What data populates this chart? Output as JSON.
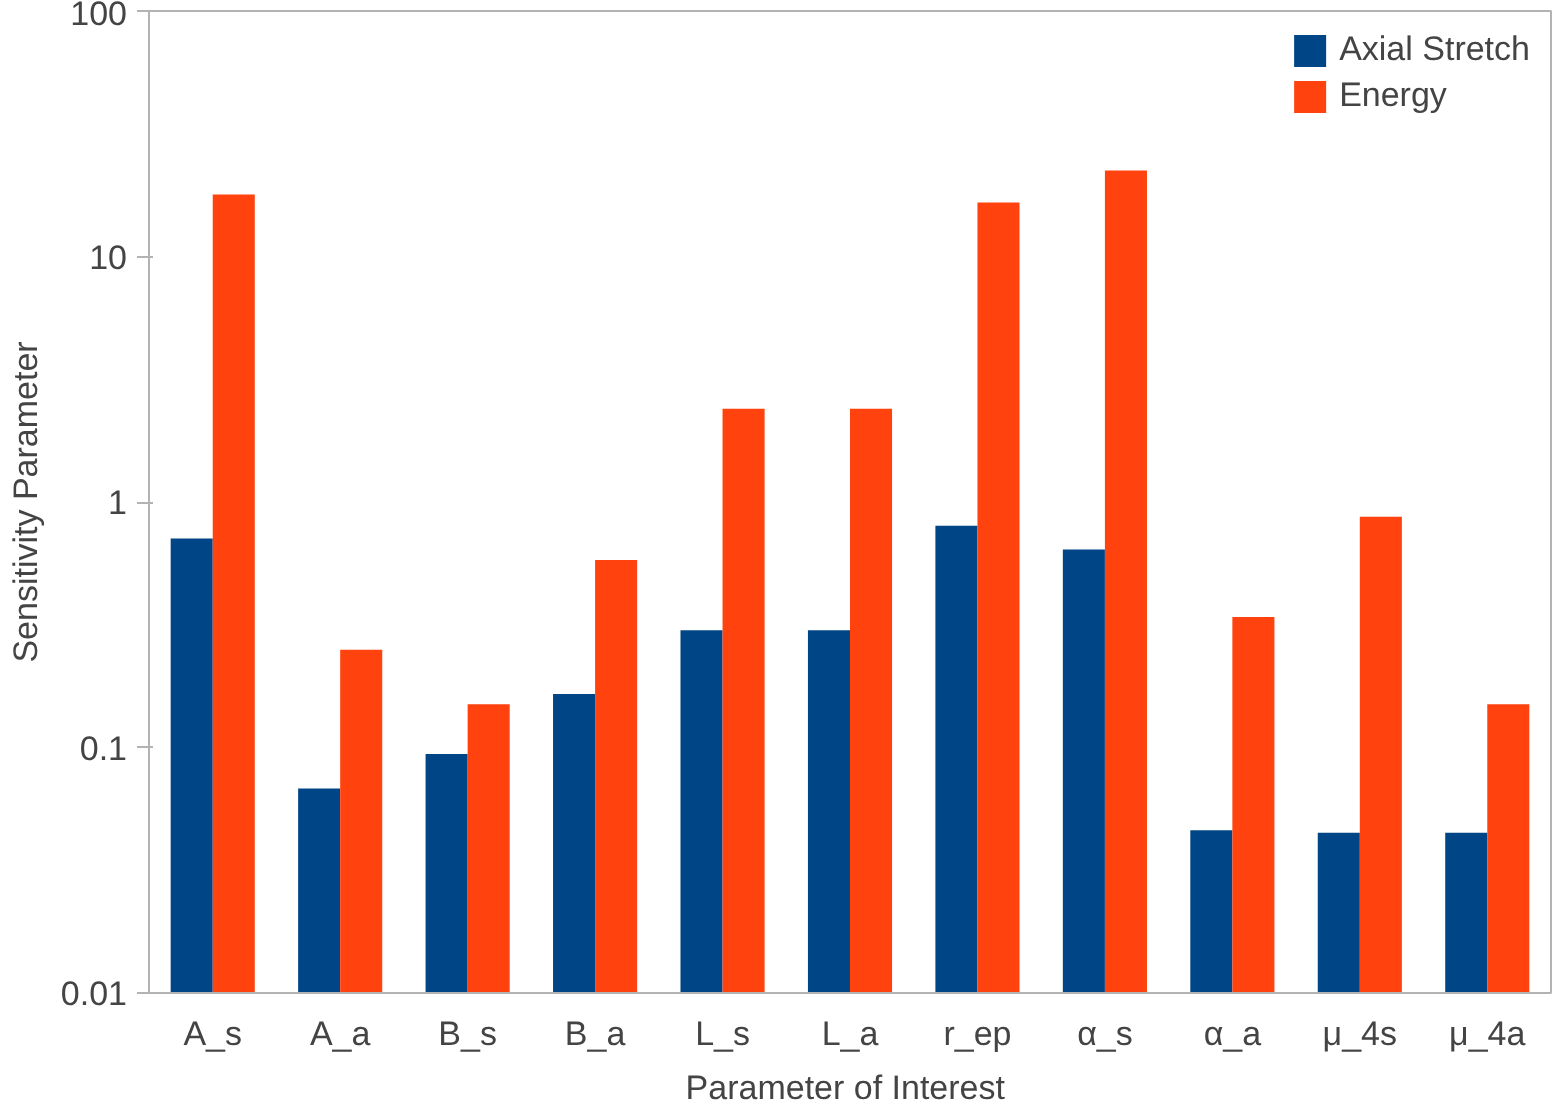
{
  "chart_data": {
    "type": "bar",
    "xlabel": "Parameter of  Interest",
    "ylabel": "Sensitivity Parameter",
    "categories": [
      "A_s",
      "A_a",
      "B_s",
      "B_a",
      "L_s",
      "L_a",
      "r_ep",
      "α_s",
      "α_a",
      "μ_4s",
      "μ_4a"
    ],
    "series": [
      {
        "name": "Axial Stretch",
        "color": "#004586",
        "values": [
          0.71,
          0.068,
          0.094,
          0.165,
          0.3,
          0.3,
          0.8,
          0.64,
          0.046,
          0.045,
          0.045
        ]
      },
      {
        "name": "Energy",
        "color": "#ff420e",
        "values": [
          17.9,
          0.25,
          0.15,
          0.58,
          2.4,
          2.4,
          16.6,
          22.4,
          0.34,
          0.87,
          0.15
        ]
      }
    ],
    "log": true,
    "ylim": [
      0.01,
      100
    ],
    "yticks": [
      {
        "value": 0.01,
        "label": "0.01"
      },
      {
        "value": 0.1,
        "label": "0.1"
      },
      {
        "value": 1,
        "label": "1"
      },
      {
        "value": 10,
        "label": "10"
      },
      {
        "value": 100,
        "label": "100"
      }
    ],
    "grid": false,
    "legend": "top right"
  }
}
